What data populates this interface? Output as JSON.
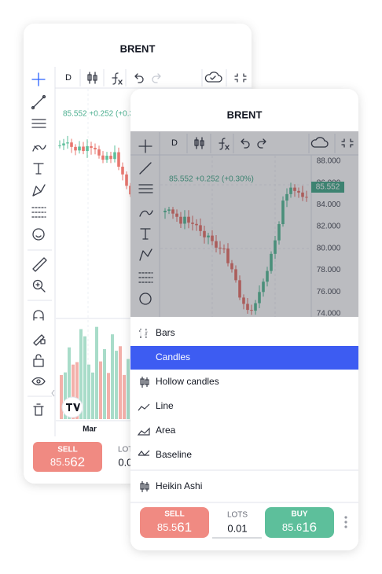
{
  "back_card": {
    "title": "BRENT",
    "timeframe": "D",
    "price_line": "85.552 +0.252 (+0.30%)",
    "x_label": "Mar",
    "sell": {
      "label": "SELL",
      "price_main": "85.5",
      "price_pips": "62"
    },
    "lots": {
      "label": "LOTS",
      "value": "0.01"
    }
  },
  "front_card": {
    "title": "BRENT",
    "timeframe": "D",
    "price_line": "85.552 +0.252 (+0.30%)",
    "price_axis": [
      "88.000",
      "86.000",
      "84.000",
      "82.000",
      "80.000",
      "78.000",
      "76.000",
      "74.000"
    ],
    "last_price": "85.552",
    "chart_type_menu": [
      "Bars",
      "Candles",
      "Hollow candles",
      "Line",
      "Area",
      "Baseline",
      "Heikin Ashi"
    ],
    "selected_index": 1,
    "sell": {
      "label": "SELL",
      "price_main": "85.5",
      "price_pips": "61"
    },
    "lots": {
      "label": "LOTS",
      "value": "0.01"
    },
    "buy": {
      "label": "BUY",
      "price_main": "85.6",
      "price_pips": "16"
    }
  }
}
